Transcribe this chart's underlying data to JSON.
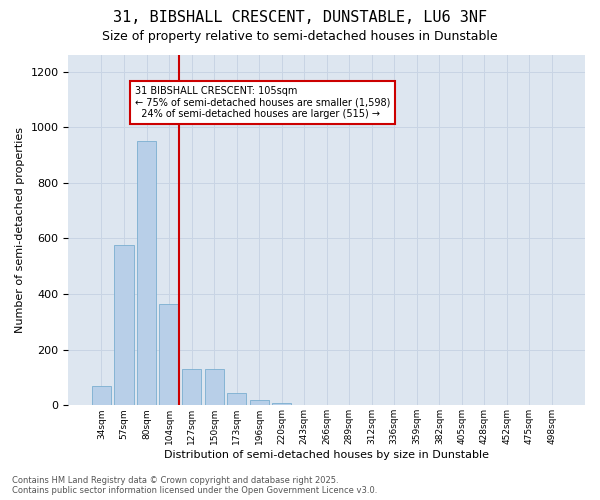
{
  "title_line1": "31, BIBSHALL CRESCENT, DUNSTABLE, LU6 3NF",
  "title_line2": "Size of property relative to semi-detached houses in Dunstable",
  "xlabel": "Distribution of semi-detached houses by size in Dunstable",
  "ylabel": "Number of semi-detached properties",
  "categories": [
    "34sqm",
    "57sqm",
    "80sqm",
    "104sqm",
    "127sqm",
    "150sqm",
    "173sqm",
    "196sqm",
    "220sqm",
    "243sqm",
    "266sqm",
    "289sqm",
    "312sqm",
    "336sqm",
    "359sqm",
    "382sqm",
    "405sqm",
    "428sqm",
    "452sqm",
    "475sqm",
    "498sqm"
  ],
  "values": [
    70,
    575,
    950,
    365,
    130,
    130,
    45,
    20,
    8,
    0,
    0,
    0,
    0,
    0,
    0,
    0,
    0,
    0,
    0,
    0,
    0
  ],
  "bar_color": "#b8cfe8",
  "bar_edge_color": "#7aaed0",
  "grid_color": "#c8d4e4",
  "bg_color": "#dde6f0",
  "vline_color": "#cc0000",
  "annotation_text": "31 BIBSHALL CRESCENT: 105sqm\n← 75% of semi-detached houses are smaller (1,598)\n  24% of semi-detached houses are larger (515) →",
  "annotation_box_color": "#cc0000",
  "ylim": [
    0,
    1260
  ],
  "yticks": [
    0,
    200,
    400,
    600,
    800,
    1000,
    1200
  ],
  "footer_line1": "Contains HM Land Registry data © Crown copyright and database right 2025.",
  "footer_line2": "Contains public sector information licensed under the Open Government Licence v3.0.",
  "title_fontsize": 11,
  "subtitle_fontsize": 9,
  "ylabel_fontsize": 8,
  "xlabel_fontsize": 8,
  "tick_fontsize": 6.5,
  "annot_fontsize": 7,
  "footer_fontsize": 6
}
